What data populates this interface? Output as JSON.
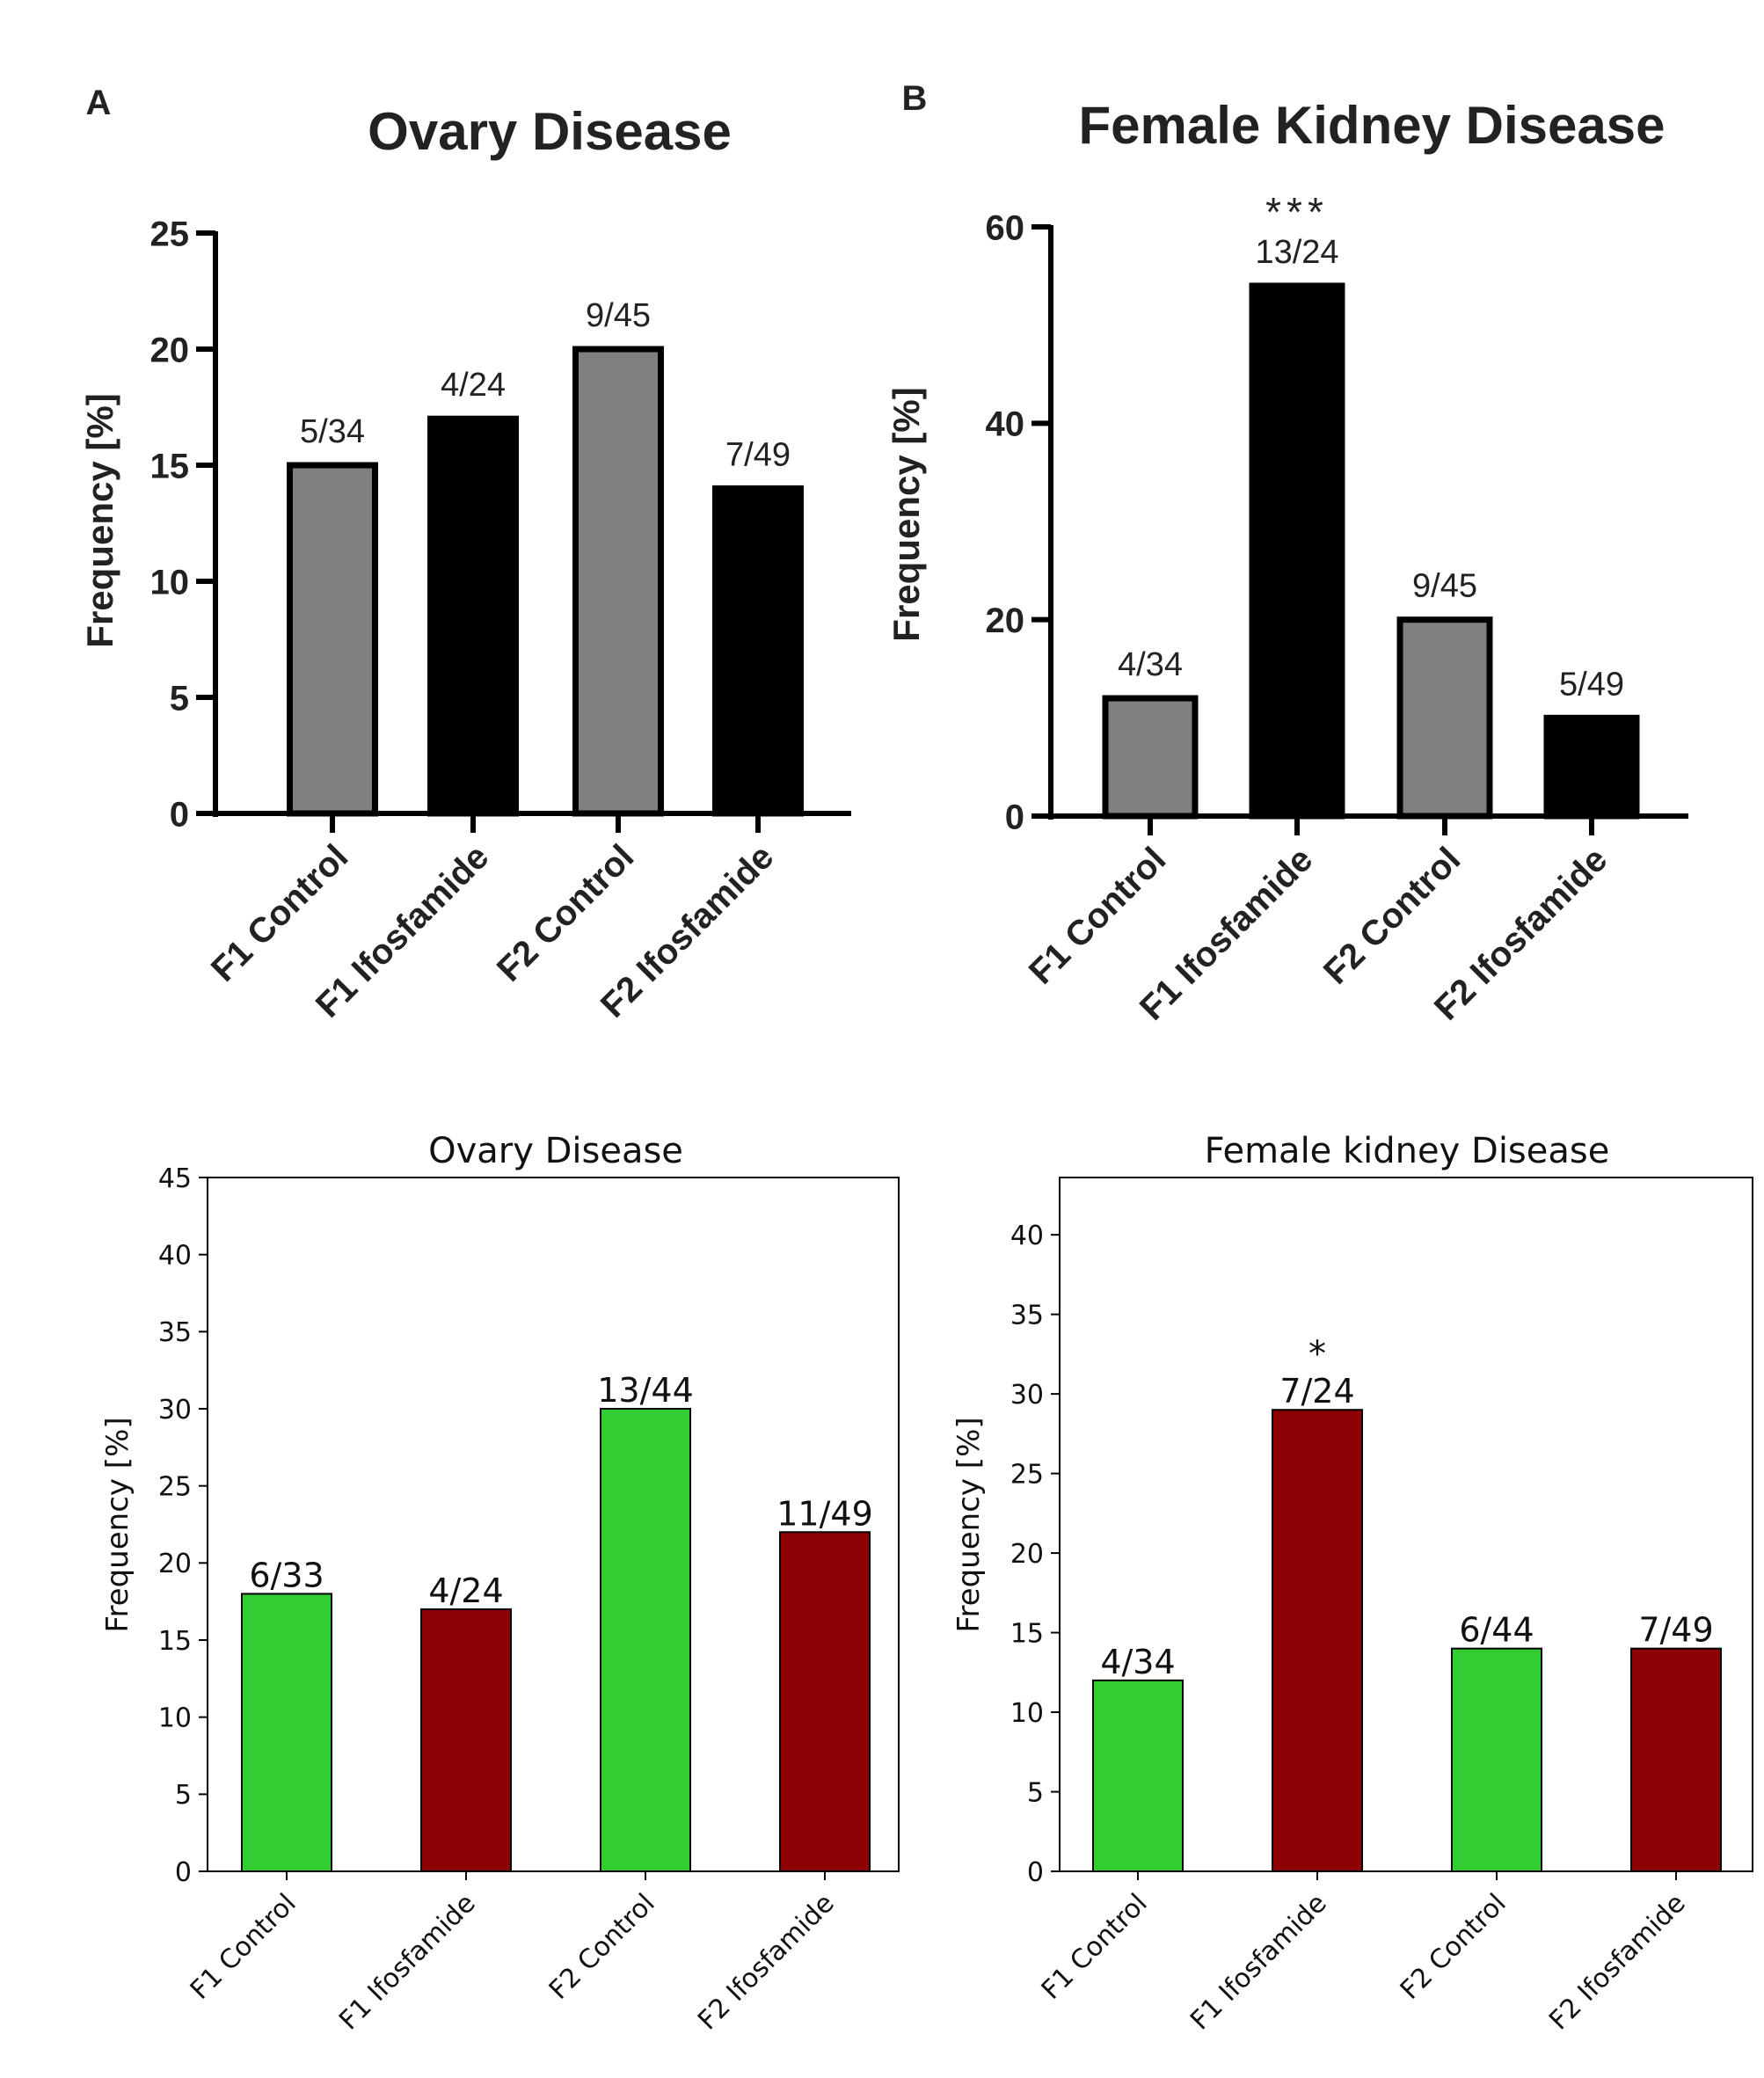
{
  "chart_data": [
    {
      "panel_label": "A",
      "type": "bar",
      "title": "Ovary Disease",
      "xlabel": "",
      "ylabel": "Frequency [%]",
      "categories": [
        "F1 Control",
        "F1 Ifosfamide",
        "F2 Control",
        "F2 Ifosfamide"
      ],
      "values": [
        15,
        17,
        20,
        14
      ],
      "bar_labels": [
        "5/34",
        "4/24",
        "9/45",
        "7/49"
      ],
      "significance": [
        "",
        "",
        "",
        ""
      ],
      "colors": [
        "#808080",
        "#000000",
        "#808080",
        "#000000"
      ],
      "ylim": [
        0,
        25
      ],
      "yticks": [
        0,
        5,
        10,
        15,
        20,
        25
      ],
      "grid": false
    },
    {
      "panel_label": "B",
      "type": "bar",
      "title": "Female Kidney Disease",
      "xlabel": "",
      "ylabel": "Frequency [%]",
      "categories": [
        "F1 Control",
        "F1 Ifosfamide",
        "F2 Control",
        "F2 Ifosfamide"
      ],
      "values": [
        12,
        54,
        20,
        10
      ],
      "bar_labels": [
        "4/34",
        "13/24",
        "9/45",
        "5/49"
      ],
      "significance": [
        "",
        "***",
        "",
        ""
      ],
      "colors": [
        "#808080",
        "#000000",
        "#808080",
        "#000000"
      ],
      "ylim": [
        0,
        60
      ],
      "yticks": [
        0,
        20,
        40,
        60
      ],
      "grid": false
    },
    {
      "panel_label": "",
      "type": "bar",
      "title": "Ovary Disease",
      "xlabel": "",
      "ylabel": "Frequency [%]",
      "categories": [
        "F1 Control",
        "F1 Ifosfamide",
        "F2 Control",
        "F2 Ifosfamide"
      ],
      "values": [
        18,
        17,
        30,
        22
      ],
      "bar_labels": [
        "6/33",
        "4/24",
        "13/44",
        "11/49"
      ],
      "significance": [
        "",
        "",
        "",
        ""
      ],
      "colors": [
        "#32cd32",
        "#8b0000",
        "#32cd32",
        "#8b0000"
      ],
      "ylim": [
        0,
        45
      ],
      "yticks": [
        0,
        5,
        10,
        15,
        20,
        25,
        30,
        35,
        40,
        45
      ],
      "grid": false
    },
    {
      "panel_label": "",
      "type": "bar",
      "title": "Female kidney Disease",
      "xlabel": "",
      "ylabel": "Frequency [%]",
      "categories": [
        "F1 Control",
        "F1 Ifosfamide",
        "F2 Control",
        "F2 Ifosfamide"
      ],
      "values": [
        12,
        29,
        14,
        14
      ],
      "bar_labels": [
        "4/34",
        "7/24",
        "6/44",
        "7/49"
      ],
      "significance": [
        "",
        "*",
        "",
        ""
      ],
      "colors": [
        "#32cd32",
        "#8b0000",
        "#32cd32",
        "#8b0000"
      ],
      "ylim": [
        0,
        43.6
      ],
      "yticks": [
        0,
        5,
        10,
        15,
        20,
        25,
        30,
        35,
        40
      ],
      "grid": false
    }
  ]
}
